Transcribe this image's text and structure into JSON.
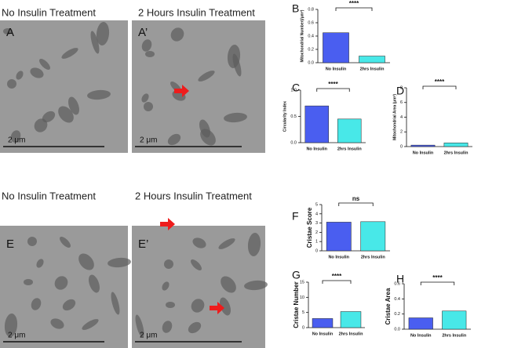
{
  "images": [
    {
      "letter": "A",
      "header": "No Insulin Treatment",
      "scale": "2 μm"
    },
    {
      "letter": "A’",
      "header": "2 Hours Insulin Treatment",
      "scale": "2 μm"
    },
    {
      "letter": "E",
      "header": "No Insulin Treatment",
      "scale": "2 μm"
    },
    {
      "letter": "E’",
      "header": "2 Hours Insulin Treatment",
      "scale": "2 μm"
    }
  ],
  "chart_data": [
    {
      "type": "bar",
      "label": "B",
      "ylabel": "Mitochondrial Number(/μm²)",
      "categories": [
        "No Insulin",
        "2hrs Insulin"
      ],
      "values": [
        0.45,
        0.1
      ],
      "colors": [
        "#4a5ef0",
        "#48e8e8"
      ],
      "ylim": [
        0,
        0.8
      ],
      "yticks": [
        {
          "value": 0,
          "label": "0.0"
        },
        0.2,
        0.4,
        0.6,
        0.8
      ],
      "significance": "****"
    },
    {
      "type": "bar",
      "label": "C",
      "ylabel": "Circularity Index",
      "categories": [
        "No Insulin",
        "2hrs Insulin"
      ],
      "values": [
        0.7,
        0.45
      ],
      "colors": [
        "#4a5ef0",
        "#48e8e8"
      ],
      "ylim": [
        0,
        1
      ],
      "yticks": [
        {
          "value": 0,
          "label": "0.0"
        },
        0.5,
        {
          "value": 1,
          "label": "1.0"
        }
      ],
      "significance": "****"
    },
    {
      "type": "bar",
      "label": "D",
      "ylabel": "Mitochondrial Area (μm²)",
      "categories": [
        "No Insulin",
        "2hrs Insulin"
      ],
      "values": [
        0.2,
        0.5
      ],
      "colors": [
        "#4a5ef0",
        "#48e8e8"
      ],
      "ylim": [
        0,
        8
      ],
      "yticks": [
        0,
        2,
        4,
        6,
        8
      ],
      "significance": "****"
    },
    {
      "type": "bar",
      "label": "F",
      "ylabel": "Cristae Score",
      "categories": [
        "No Insulin",
        "2hrs Insulin"
      ],
      "values": [
        3.1,
        3.15
      ],
      "colors": [
        "#4a5ef0",
        "#48e8e8"
      ],
      "ylim": [
        0,
        5
      ],
      "yticks": [
        0,
        1,
        2,
        3,
        4,
        5
      ],
      "significance": "ns"
    },
    {
      "type": "bar",
      "label": "G",
      "ylabel": "Cristae Number",
      "categories": [
        "No Insulin",
        "2hrs Insulin"
      ],
      "values": [
        3,
        5.3
      ],
      "colors": [
        "#4a5ef0",
        "#48e8e8"
      ],
      "ylim": [
        0,
        15
      ],
      "yticks": [
        0,
        5,
        10,
        15
      ],
      "significance": "****"
    },
    {
      "type": "bar",
      "label": "H",
      "ylabel": "Cristae Area",
      "categories": [
        "No Insulin",
        "2hrs Insulin"
      ],
      "values": [
        0.15,
        0.24
      ],
      "colors": [
        "#4a5ef0",
        "#48e8e8"
      ],
      "ylim": [
        0,
        0.6
      ],
      "yticks": [
        {
          "value": 0,
          "label": "0.0"
        },
        0.2,
        0.4,
        0.6
      ],
      "significance": "****"
    }
  ]
}
